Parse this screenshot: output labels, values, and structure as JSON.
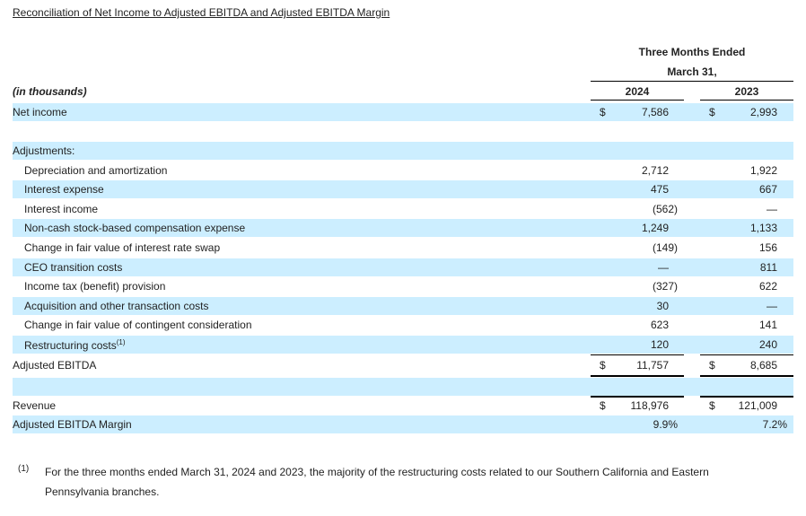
{
  "title": "Reconciliation of Net Income to Adjusted EBITDA and Adjusted EBITDA Margin",
  "header": {
    "period_line1": "Three Months Ended",
    "period_line2": "March 31,",
    "units": "(in thousands)",
    "year1": "2024",
    "year2": "2023"
  },
  "currency_symbol": "$",
  "rows": {
    "net_income": {
      "label": "Net income",
      "v2024": "7,586",
      "v2023": "2,993"
    },
    "adjustments": {
      "label": "Adjustments:"
    },
    "dep": {
      "label": "Depreciation and amortization",
      "v2024": "2,712",
      "v2023": "1,922"
    },
    "int_exp": {
      "label": "Interest expense",
      "v2024": "475",
      "v2023": "667"
    },
    "int_inc": {
      "label": "Interest income",
      "v2024": "(562)",
      "v2023": "—"
    },
    "sbc": {
      "label": "Non-cash stock-based compensation expense",
      "v2024": "1,249",
      "v2023": "1,133"
    },
    "swap": {
      "label": "Change in fair value of interest rate swap",
      "v2024": "(149)",
      "v2023": "156"
    },
    "ceo": {
      "label": "CEO transition costs",
      "v2024": "—",
      "v2023": "811"
    },
    "tax": {
      "label": "Income tax (benefit) provision",
      "v2024": "(327)",
      "v2023": "622"
    },
    "acq": {
      "label": "Acquisition and other transaction costs",
      "v2024": "30",
      "v2023": "—"
    },
    "contingent": {
      "label": "Change in fair value of contingent consideration",
      "v2024": "623",
      "v2023": "141"
    },
    "restructuring": {
      "label": "Restructuring costs",
      "footnote_ref": "(1)",
      "v2024": "120",
      "v2023": "240"
    },
    "adj_ebitda": {
      "label": "Adjusted EBITDA",
      "v2024": "11,757",
      "v2023": "8,685"
    },
    "revenue": {
      "label": "Revenue",
      "v2024": "118,976",
      "v2023": "121,009"
    },
    "margin": {
      "label": "Adjusted EBITDA Margin",
      "v2024": "9.9%",
      "v2023": "7.2%"
    }
  },
  "footnote": {
    "mark": "(1)",
    "text": "For the three months ended March 31, 2024 and 2023, the majority of the restructuring costs related to our Southern California and Eastern Pennsylvania branches."
  }
}
